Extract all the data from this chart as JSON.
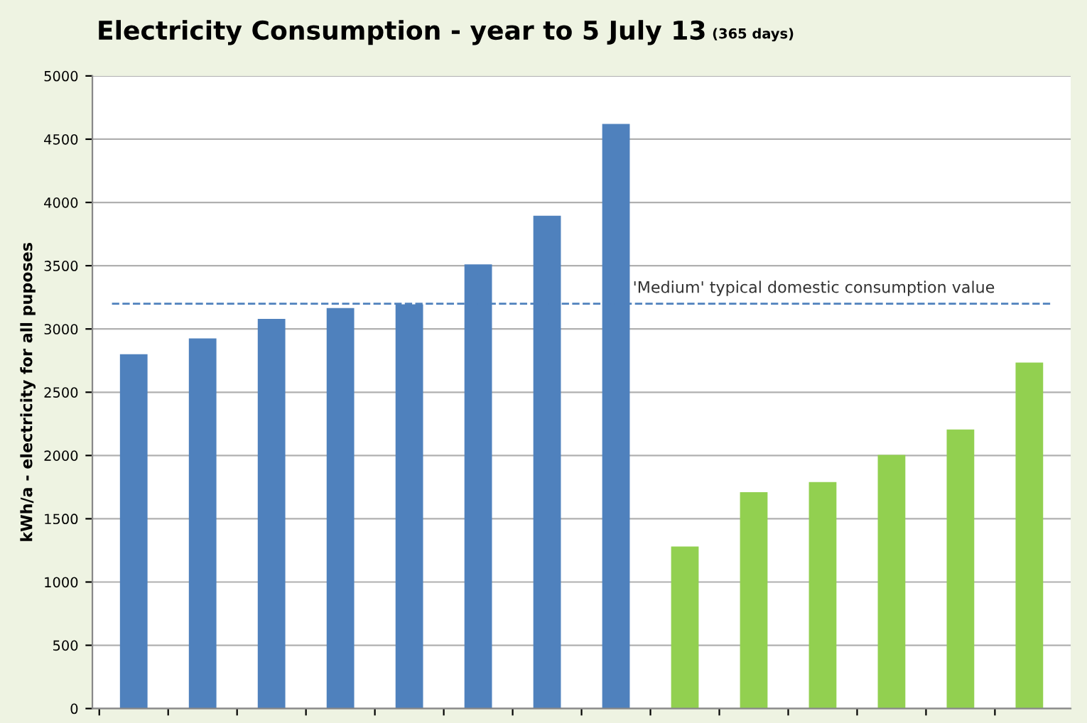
{
  "chart_data": {
    "type": "bar",
    "title": "Electricity Consumption - year to 5 July 13",
    "subtitle": "(365 days)",
    "ylabel": "kWh/a - electricity for all puposes",
    "categories": [
      null,
      null,
      null,
      null,
      null,
      null,
      null,
      null,
      null,
      null,
      null,
      null,
      null,
      null
    ],
    "values": [
      2800,
      2925,
      3080,
      3165,
      3195,
      3510,
      3895,
      4620,
      1280,
      1710,
      1790,
      2005,
      2205,
      2735
    ],
    "colors": [
      "#4f81bd",
      "#4f81bd",
      "#4f81bd",
      "#4f81bd",
      "#4f81bd",
      "#4f81bd",
      "#4f81bd",
      "#4f81bd",
      "#92d050",
      "#92d050",
      "#92d050",
      "#92d050",
      "#92d050",
      "#92d050"
    ],
    "ylim": [
      0,
      5000
    ],
    "yticks": [
      0,
      500,
      1000,
      1500,
      2000,
      2500,
      3000,
      3500,
      4000,
      4500,
      5000
    ],
    "grid": "y",
    "ref_lines": [
      {
        "axis": "y",
        "value": 3200,
        "label": "'Medium' typical domestic consumption value",
        "color": "#4f81bd",
        "line_style": "dashed"
      }
    ]
  }
}
